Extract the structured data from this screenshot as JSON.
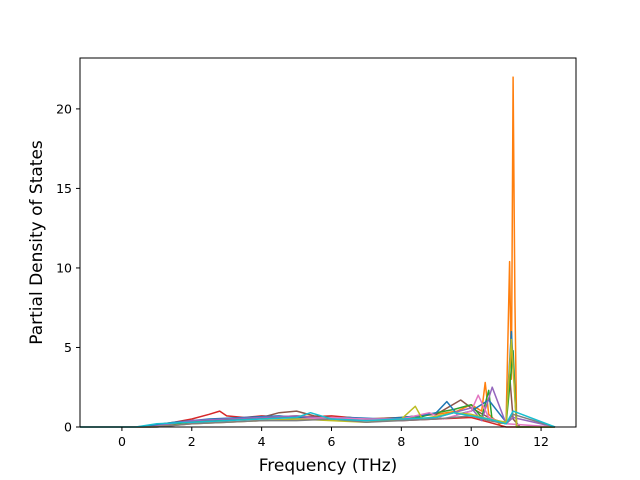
{
  "chart_data": {
    "type": "line",
    "xlabel": "Frequency (THz)",
    "ylabel": "Partial Density of States",
    "xlim": [
      -1.2,
      13.0
    ],
    "ylim": [
      0,
      23.2
    ],
    "x_ticks": [
      0,
      2,
      4,
      6,
      8,
      10,
      12
    ],
    "y_ticks": [
      0,
      5,
      10,
      15,
      20
    ],
    "x_tick_labels": [
      "0",
      "2",
      "4",
      "6",
      "8",
      "10",
      "12"
    ],
    "y_tick_labels": [
      "0",
      "5",
      "10",
      "15",
      "20"
    ],
    "grid": false,
    "legend": "none",
    "series": [
      {
        "color": "#ff7f0e",
        "x": [
          -1.2,
          0.4,
          1.2,
          2.0,
          3.0,
          4.0,
          5.0,
          6.0,
          7.0,
          8.0,
          9.0,
          9.6,
          10.0,
          10.3,
          10.4,
          10.5,
          10.8,
          11.0,
          11.1,
          11.15,
          11.2,
          11.25,
          11.3,
          11.4,
          12.4
        ],
        "values": [
          0,
          0,
          0.2,
          0.4,
          0.5,
          0.6,
          0.7,
          0.6,
          0.5,
          0.6,
          0.8,
          1.0,
          1.4,
          1.0,
          2.8,
          0.8,
          0.2,
          0.3,
          10.4,
          3.0,
          22.0,
          8.0,
          0.2,
          0,
          0
        ]
      },
      {
        "color": "#d62728",
        "x": [
          -1.2,
          0.5,
          1.5,
          2.0,
          2.5,
          2.8,
          3.0,
          3.5,
          4.0,
          5.0,
          6.0,
          7.0,
          8.0,
          9.0,
          10.0,
          10.5,
          11.0,
          12.4
        ],
        "values": [
          0,
          0,
          0.3,
          0.5,
          0.8,
          1.0,
          0.7,
          0.6,
          0.7,
          0.6,
          0.7,
          0.5,
          0.4,
          0.5,
          0.6,
          0.3,
          0,
          0
        ]
      },
      {
        "color": "#8c564b",
        "x": [
          -1.2,
          0.8,
          2.0,
          3.0,
          4.0,
          4.5,
          5.0,
          5.5,
          6.0,
          7.0,
          8.0,
          9.0,
          9.7,
          10.0,
          10.5,
          11.0,
          11.1,
          11.2,
          11.4,
          12.4
        ],
        "values": [
          0,
          0,
          0.3,
          0.4,
          0.6,
          0.9,
          1.0,
          0.7,
          0.6,
          0.5,
          0.6,
          0.8,
          1.7,
          1.2,
          0.6,
          0.2,
          3.3,
          0.5,
          0,
          0
        ]
      },
      {
        "color": "#2ca02c",
        "x": [
          -1.2,
          0.6,
          1.5,
          2.5,
          3.5,
          4.5,
          5.5,
          6.5,
          7.5,
          8.5,
          9.0,
          9.5,
          10.0,
          10.3,
          10.5,
          10.6,
          11.0,
          11.2,
          11.3,
          12.4
        ],
        "values": [
          0,
          0,
          0.2,
          0.4,
          0.5,
          0.6,
          0.5,
          0.6,
          0.4,
          0.6,
          0.9,
          1.1,
          1.4,
          0.6,
          2.3,
          0.4,
          0.2,
          4.8,
          0,
          0
        ]
      },
      {
        "color": "#1f77b4",
        "x": [
          -1.2,
          0.5,
          1.5,
          2.5,
          3.5,
          4.5,
          5.5,
          6.5,
          7.5,
          8.5,
          9.0,
          9.3,
          9.6,
          10.0,
          10.5,
          11.0,
          11.15,
          11.3,
          12.4
        ],
        "values": [
          0,
          0,
          0.3,
          0.5,
          0.6,
          0.7,
          0.5,
          0.6,
          0.5,
          0.7,
          0.9,
          1.6,
          0.8,
          1.0,
          1.7,
          0.3,
          6.0,
          0,
          0
        ]
      },
      {
        "color": "#9467bd",
        "x": [
          -1.2,
          0.8,
          2.0,
          3.0,
          4.0,
          5.0,
          6.0,
          7.0,
          8.0,
          9.0,
          10.0,
          10.3,
          10.6,
          11.0,
          11.2,
          12.4
        ],
        "values": [
          0,
          0,
          0.4,
          0.5,
          0.6,
          0.7,
          0.5,
          0.5,
          0.4,
          0.6,
          1.2,
          0.4,
          2.5,
          0.2,
          0.6,
          0
        ]
      },
      {
        "color": "#e377c2",
        "x": [
          -1.2,
          1.0,
          2.0,
          3.0,
          4.0,
          5.0,
          6.0,
          7.0,
          8.0,
          8.8,
          9.2,
          10.0,
          10.2,
          10.5,
          11.0,
          12.4
        ],
        "values": [
          0,
          0,
          0.2,
          0.3,
          0.4,
          0.5,
          0.6,
          0.5,
          0.5,
          0.9,
          0.5,
          1.0,
          2.0,
          0.6,
          0.2,
          0
        ]
      },
      {
        "color": "#bcbd22",
        "x": [
          -1.2,
          0.9,
          2.0,
          3.0,
          4.0,
          5.0,
          6.0,
          7.0,
          8.0,
          8.4,
          8.6,
          9.5,
          10.0,
          10.5,
          11.0,
          11.15,
          11.3,
          12.4
        ],
        "values": [
          0,
          0,
          0.2,
          0.3,
          0.4,
          0.5,
          0.4,
          0.3,
          0.5,
          1.3,
          0.5,
          0.9,
          0.8,
          0.5,
          0.3,
          5.5,
          0,
          0
        ]
      },
      {
        "color": "#7f7f7f",
        "x": [
          -1.2,
          1.0,
          2.0,
          3.0,
          4.0,
          5.0,
          6.0,
          7.0,
          8.0,
          9.0,
          10.0,
          10.5,
          11.0,
          11.2,
          12.4
        ],
        "values": [
          0,
          0,
          0.2,
          0.3,
          0.4,
          0.4,
          0.5,
          0.3,
          0.4,
          0.5,
          0.7,
          0.4,
          0.2,
          0.8,
          0
        ]
      },
      {
        "color": "#17becf",
        "x": [
          -1.2,
          0.4,
          1.0,
          2.0,
          3.0,
          4.0,
          5.0,
          5.4,
          6.0,
          7.0,
          8.0,
          9.0,
          9.5,
          10.0,
          10.5,
          11.0,
          11.2,
          12.4
        ],
        "values": [
          0,
          0,
          0.2,
          0.3,
          0.4,
          0.5,
          0.6,
          0.9,
          0.5,
          0.4,
          0.5,
          0.6,
          0.9,
          0.7,
          0.5,
          0.2,
          1.0,
          0
        ]
      }
    ]
  }
}
